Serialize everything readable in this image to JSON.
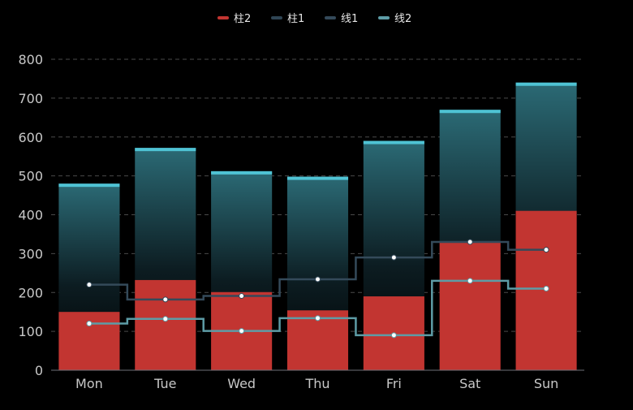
{
  "chart_data": {
    "type": "bar",
    "categories": [
      "Mon",
      "Tue",
      "Wed",
      "Thu",
      "Fri",
      "Sat",
      "Sun"
    ],
    "yticks": [
      0,
      100,
      200,
      300,
      400,
      500,
      600,
      700,
      800
    ],
    "ylim": [
      0,
      800
    ],
    "grid": true,
    "legend_position": "top-center",
    "series": [
      {
        "name": "柱2",
        "kind": "bar",
        "color": "#c23531",
        "values": [
          150,
          232,
          201,
          154,
          190,
          330,
          410
        ]
      },
      {
        "name": "柱1",
        "kind": "bar",
        "color": "#2f4554",
        "accent": "#4fc3d4",
        "values": [
          480,
          572,
          512,
          498,
          590,
          670,
          740
        ]
      },
      {
        "name": "线1",
        "kind": "step-line",
        "color": "#344a5a",
        "values": [
          220,
          182,
          191,
          234,
          290,
          330,
          310
        ]
      },
      {
        "name": "线2",
        "kind": "step-line",
        "color": "#5d9ca6",
        "values": [
          120,
          132,
          101,
          134,
          90,
          230,
          210
        ]
      }
    ]
  }
}
